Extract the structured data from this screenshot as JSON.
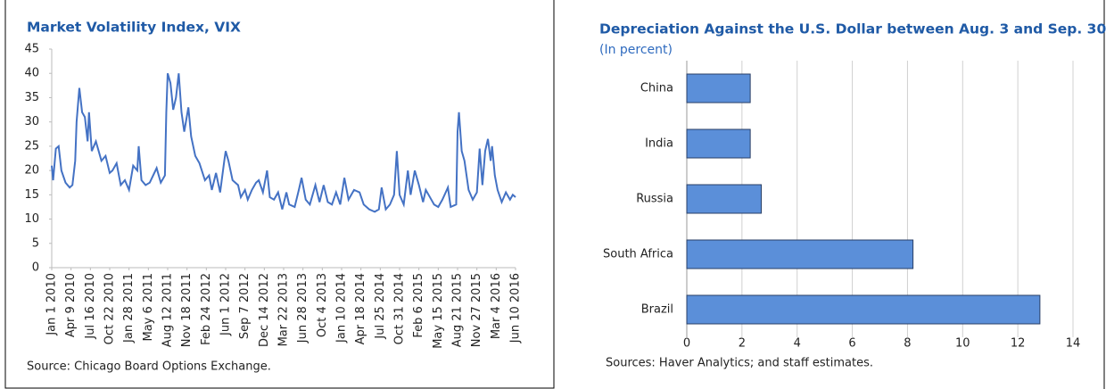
{
  "chart_data": [
    {
      "type": "line",
      "title": "Market Volatility Index, VIX",
      "note": "Source: Chicago Board Options Exchange.",
      "color": "#4472c4",
      "x": [
        "2010-01-01",
        "2010-01-08",
        "2010-01-22",
        "2010-02-05",
        "2010-02-19",
        "2010-03-12",
        "2010-04-02",
        "2010-04-16",
        "2010-04-30",
        "2010-05-07",
        "2010-05-21",
        "2010-06-04",
        "2010-06-18",
        "2010-07-02",
        "2010-07-09",
        "2010-07-23",
        "2010-08-13",
        "2010-08-27",
        "2010-09-10",
        "2010-10-01",
        "2010-10-22",
        "2010-11-05",
        "2010-11-26",
        "2010-12-17",
        "2011-01-07",
        "2011-01-28",
        "2011-02-18",
        "2011-03-11",
        "2011-03-18",
        "2011-04-01",
        "2011-04-22",
        "2011-05-13",
        "2011-06-17",
        "2011-07-08",
        "2011-07-29",
        "2011-08-05",
        "2011-08-12",
        "2011-08-26",
        "2011-09-09",
        "2011-09-23",
        "2011-10-07",
        "2011-10-21",
        "2011-11-04",
        "2011-11-25",
        "2011-12-09",
        "2011-12-30",
        "2012-01-20",
        "2012-02-17",
        "2012-03-09",
        "2012-03-23",
        "2012-04-13",
        "2012-05-04",
        "2012-05-25",
        "2012-06-01",
        "2012-06-15",
        "2012-07-06",
        "2012-08-03",
        "2012-08-17",
        "2012-09-07",
        "2012-09-21",
        "2012-10-12",
        "2012-11-02",
        "2012-11-16",
        "2012-12-07",
        "2012-12-28",
        "2013-01-11",
        "2013-02-01",
        "2013-02-22",
        "2013-03-15",
        "2013-04-05",
        "2013-04-19",
        "2013-05-17",
        "2013-06-07",
        "2013-06-21",
        "2013-07-12",
        "2013-08-02",
        "2013-08-30",
        "2013-09-20",
        "2013-10-11",
        "2013-11-01",
        "2013-11-22",
        "2013-12-13",
        "2014-01-03",
        "2014-01-24",
        "2014-02-14",
        "2014-03-14",
        "2014-04-11",
        "2014-05-02",
        "2014-05-30",
        "2014-06-27",
        "2014-07-18",
        "2014-08-01",
        "2014-08-22",
        "2014-09-12",
        "2014-10-03",
        "2014-10-17",
        "2014-10-31",
        "2014-11-21",
        "2014-12-12",
        "2014-12-26",
        "2015-01-16",
        "2015-02-06",
        "2015-02-27",
        "2015-03-13",
        "2015-04-03",
        "2015-04-24",
        "2015-05-15",
        "2015-06-05",
        "2015-07-03",
        "2015-07-17",
        "2015-08-14",
        "2015-08-21",
        "2015-08-28",
        "2015-09-11",
        "2015-09-25",
        "2015-10-16",
        "2015-11-06",
        "2015-11-27",
        "2015-12-11",
        "2015-12-25",
        "2016-01-08",
        "2016-01-22",
        "2016-02-05",
        "2016-02-12",
        "2016-02-26",
        "2016-03-11",
        "2016-04-01",
        "2016-04-22",
        "2016-05-13",
        "2016-05-27",
        "2016-06-10"
      ],
      "values": [
        21,
        18,
        24.5,
        25,
        20,
        17.5,
        16.5,
        17,
        22,
        30,
        37,
        32,
        31,
        26,
        32,
        24,
        26,
        24,
        22,
        23,
        19.5,
        20,
        21.5,
        17,
        18,
        16,
        21,
        20,
        25,
        18,
        17,
        17.5,
        20.5,
        17.5,
        19,
        32,
        40,
        38,
        32.5,
        35,
        40,
        32,
        28,
        33,
        27,
        23,
        21.5,
        18,
        19,
        16,
        19.5,
        15.5,
        22,
        24,
        22,
        18,
        17,
        14.5,
        16,
        14,
        16,
        17.5,
        18,
        15.5,
        20,
        14.5,
        14,
        15.5,
        12,
        15.5,
        13,
        12.5,
        16,
        18.5,
        14,
        13,
        17,
        13.5,
        17,
        13.5,
        13,
        15.5,
        13,
        18.5,
        14,
        16,
        15.5,
        13,
        12,
        11.5,
        12,
        16.5,
        12,
        13,
        15,
        24,
        15,
        13,
        20,
        15,
        20,
        17,
        13.5,
        16,
        14.5,
        13,
        12.5,
        14,
        16.5,
        12.5,
        13,
        28,
        32,
        24,
        22,
        16,
        14,
        15.5,
        24.5,
        17,
        24,
        26.5,
        22,
        25,
        19,
        16,
        13.5,
        15.5,
        14,
        15,
        14.5
      ],
      "xlim": [
        "2010-01-01",
        "2016-06-10"
      ],
      "xticks": [
        {
          "value": "2010-01-01",
          "label": "Jan 1 2010"
        },
        {
          "value": "2010-04-09",
          "label": "Apr 9 2010"
        },
        {
          "value": "2010-07-16",
          "label": "Jul 16 2010"
        },
        {
          "value": "2010-10-22",
          "label": "Oct 22 2010"
        },
        {
          "value": "2011-01-28",
          "label": "Jan 28 2011"
        },
        {
          "value": "2011-05-06",
          "label": "May 6 2011"
        },
        {
          "value": "2011-08-12",
          "label": "Aug 12 2011"
        },
        {
          "value": "2011-11-18",
          "label": "Nov 18 2011"
        },
        {
          "value": "2012-02-24",
          "label": "Feb 24 2012"
        },
        {
          "value": "2012-06-01",
          "label": "Jun 1 2012"
        },
        {
          "value": "2012-09-07",
          "label": "Sep 7 2012"
        },
        {
          "value": "2012-12-14",
          "label": "Dec 14 2012"
        },
        {
          "value": "2013-03-22",
          "label": "Mar 22 2013"
        },
        {
          "value": "2013-06-28",
          "label": "Jun 28 2013"
        },
        {
          "value": "2013-10-04",
          "label": "Oct 4 2013"
        },
        {
          "value": "2014-01-10",
          "label": "Jan 10 2014"
        },
        {
          "value": "2014-04-18",
          "label": "Apr 18 2014"
        },
        {
          "value": "2014-07-25",
          "label": "Jul 25 2014"
        },
        {
          "value": "2014-10-31",
          "label": "Oct 31 2014"
        },
        {
          "value": "2015-02-06",
          "label": "Feb 6 2015"
        },
        {
          "value": "2015-05-15",
          "label": "May 15 2015"
        },
        {
          "value": "2015-08-21",
          "label": "Aug 21 2015"
        },
        {
          "value": "2015-11-27",
          "label": "Nov 27 2015"
        },
        {
          "value": "2016-03-04",
          "label": "Mar 4 2016"
        },
        {
          "value": "2016-06-10",
          "label": "Jun 10 2016"
        }
      ],
      "ylim": [
        0,
        45
      ],
      "yticks": [
        0,
        5,
        10,
        15,
        20,
        25,
        30,
        35,
        40,
        45
      ]
    },
    {
      "type": "bar",
      "orientation": "horizontal",
      "title": "Depreciation Against the U.S. Dollar between Aug. 3 and Sep. 30",
      "subtitle": "(In percent)",
      "note": "Sources: Haver Analytics; and staff estimates.",
      "categories": [
        "China",
        "India",
        "Russia",
        "South Africa",
        "Brazil"
      ],
      "values": [
        2.3,
        2.3,
        2.7,
        8.2,
        12.8
      ],
      "color": "#5b8fd9",
      "xlim": [
        0,
        14
      ],
      "xticks": [
        0,
        2,
        4,
        6,
        8,
        10,
        12,
        14
      ],
      "grid": true
    }
  ]
}
